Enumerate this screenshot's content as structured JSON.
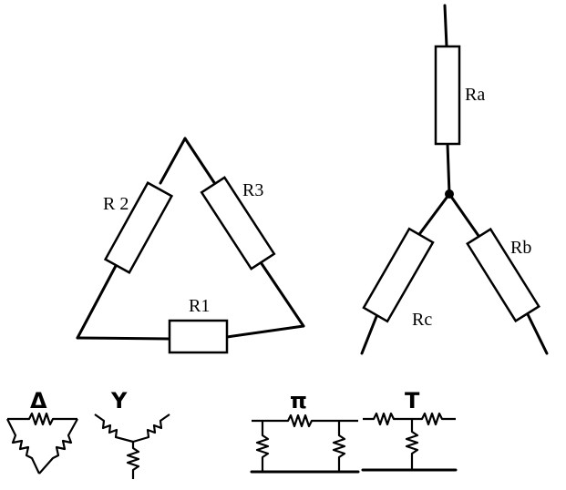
{
  "delta_network": {
    "resistors": [
      {
        "id": "r1",
        "label": "R1"
      },
      {
        "id": "r2",
        "label": "R 2"
      },
      {
        "id": "r3",
        "label": "R3"
      }
    ]
  },
  "star_network": {
    "resistors": [
      {
        "id": "ra",
        "label": "Ra"
      },
      {
        "id": "rb",
        "label": "Rb"
      },
      {
        "id": "rc",
        "label": "Rc"
      }
    ]
  },
  "symbols": {
    "delta": "Δ",
    "wye": "Y",
    "pi": "π",
    "tee": "T"
  }
}
